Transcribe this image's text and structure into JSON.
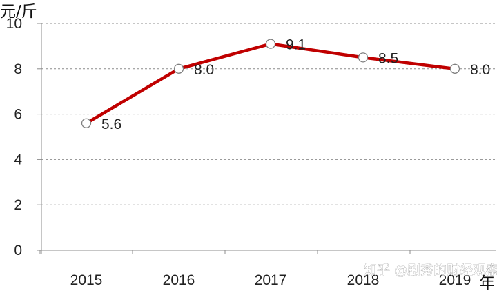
{
  "chart_data": {
    "type": "line",
    "categories": [
      "2015",
      "2016",
      "2017",
      "2018",
      "2019"
    ],
    "series": [
      {
        "values": [
          5.6,
          8.0,
          9.1,
          8.5,
          8.0
        ]
      }
    ],
    "data_labels": [
      "5.6",
      "8.0",
      "9.1",
      "8.5",
      "8.0"
    ],
    "ylabel": "元/斤",
    "xlabel": "年",
    "ylim": [
      0,
      10
    ],
    "yticks": [
      "0",
      "2",
      "4",
      "6",
      "8",
      "10"
    ],
    "grid": "horizontal-dashed",
    "line_color": "#c00000",
    "marker": "hollow-circle"
  },
  "watermark": "知乎 @剧秀的财经观察"
}
